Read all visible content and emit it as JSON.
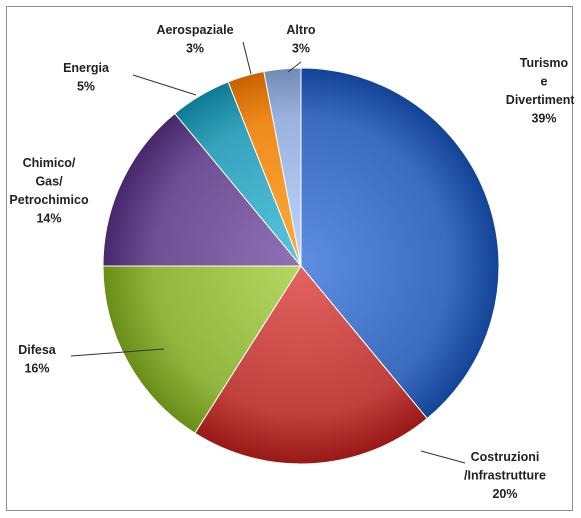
{
  "chart_data": {
    "type": "pie",
    "title": "",
    "slices": [
      {
        "label": [
          "Turismo",
          "e",
          "Divertimento"
        ],
        "value": 39,
        "pct_text": "39%",
        "color": "#3a6bbf"
      },
      {
        "label": [
          "Costruzioni",
          "/Infrastrutture"
        ],
        "value": 20,
        "pct_text": "20%",
        "color": "#c0403e"
      },
      {
        "label": [
          "Difesa"
        ],
        "value": 16,
        "pct_text": "16%",
        "color": "#92b53f"
      },
      {
        "label": [
          "Chimico/",
          "Gas/",
          "Petrochimico"
        ],
        "value": 14,
        "pct_text": "14%",
        "color": "#6e4f94"
      },
      {
        "label": [
          "Energia"
        ],
        "value": 5,
        "pct_text": "5%",
        "color": "#35a3bc"
      },
      {
        "label": [
          "Aerospaziale"
        ],
        "value": 3,
        "pct_text": "3%",
        "color": "#f08a1c"
      },
      {
        "label": [
          "Altro"
        ],
        "value": 3,
        "pct_text": "3%",
        "color": "#9ab3de"
      }
    ]
  }
}
